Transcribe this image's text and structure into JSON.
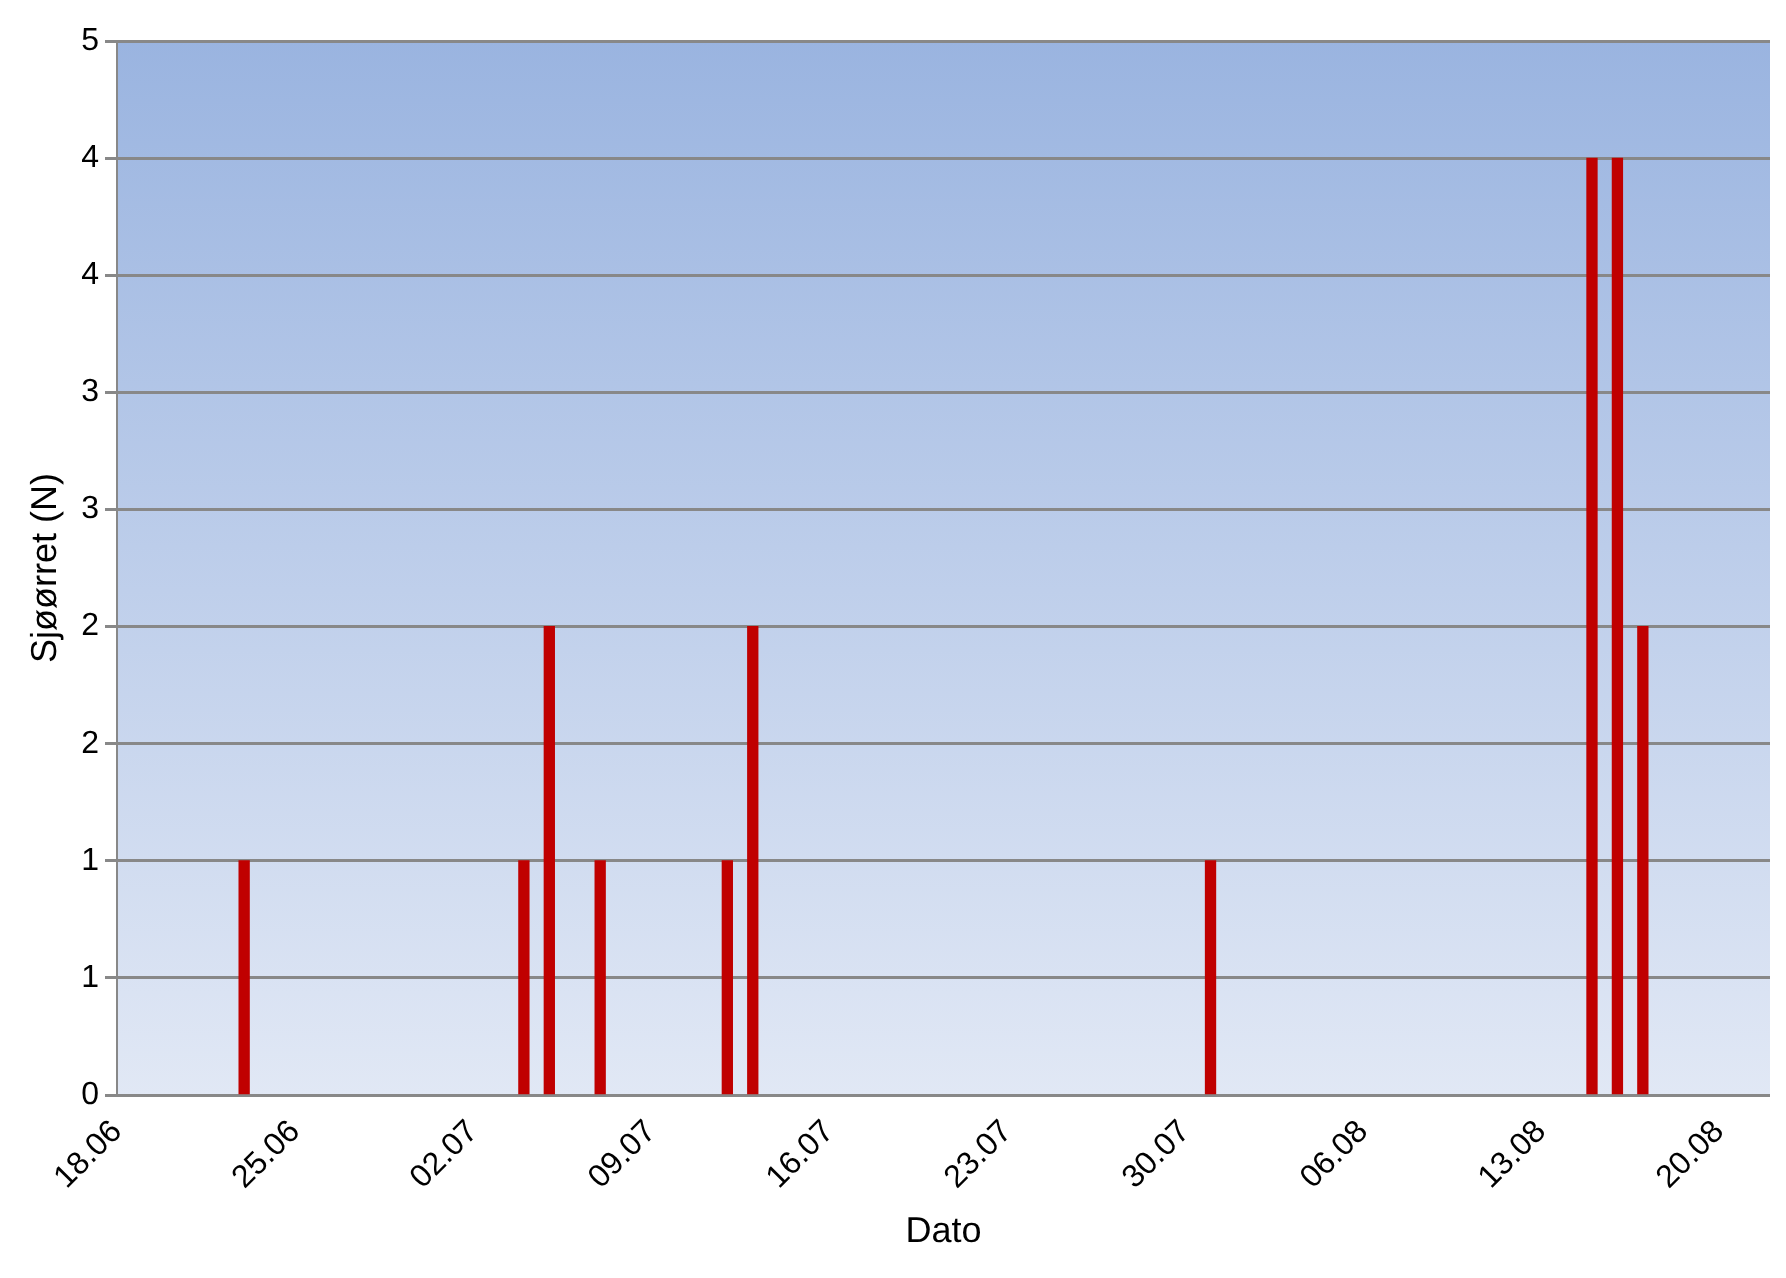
{
  "chart_data": {
    "type": "bar",
    "xlabel": "Dato",
    "ylabel": "Sjøørret (N)",
    "x": [
      "--06-23",
      "--07-04",
      "--07-05",
      "--07-07",
      "--07-12",
      "--07-13",
      "--07-31",
      "--08-15",
      "--08-16",
      "--08-17"
    ],
    "series": [
      {
        "color": "#c00000",
        "values": [
          1,
          1,
          2,
          1,
          1,
          2,
          1,
          4,
          4,
          2
        ]
      }
    ],
    "xlim": [
      "--06-18",
      "--08-22"
    ],
    "xticks": [
      {
        "value": "--06-18",
        "label": "18.06"
      },
      {
        "value": "--06-25",
        "label": "25.06"
      },
      {
        "value": "--07-02",
        "label": "02.07"
      },
      {
        "value": "--07-09",
        "label": "09.07"
      },
      {
        "value": "--07-16",
        "label": "16.07"
      },
      {
        "value": "--07-23",
        "label": "23.07"
      },
      {
        "value": "--07-30",
        "label": "30.07"
      },
      {
        "value": "--08-06",
        "label": "06.08"
      },
      {
        "value": "--08-13",
        "label": "13.08"
      },
      {
        "value": "--08-20",
        "label": "20.08"
      }
    ],
    "ylim": [
      0,
      4.5
    ],
    "yticks": [
      0,
      {
        "value": 0.5,
        "label": "1"
      },
      1,
      {
        "value": 1.5,
        "label": "2"
      },
      2,
      {
        "value": 2.5,
        "label": "3"
      },
      3,
      {
        "value": 3.5,
        "label": "4"
      },
      4,
      {
        "value": 4.5,
        "label": "5"
      }
    ],
    "grid": "y",
    "legend": false
  }
}
